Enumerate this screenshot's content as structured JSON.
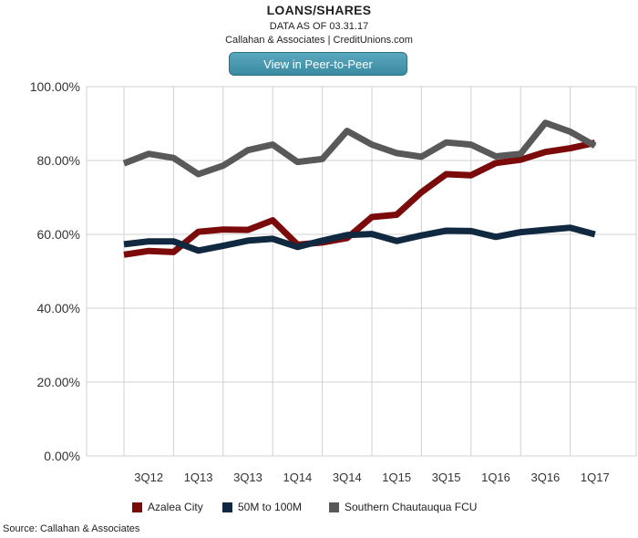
{
  "header": {
    "title": "LOANS/SHARES",
    "subtitle": "DATA AS OF 03.31.17",
    "credit": "Callahan & Associates | CreditUnions.com"
  },
  "button": {
    "label": "View in Peer-to-Peer"
  },
  "source": "Source: Callahan & Associates",
  "colors": {
    "azalea": "#7b0a0a",
    "peer": "#102840",
    "southern": "#595959",
    "grid": "#d0d0d0"
  },
  "chart_data": {
    "type": "line",
    "title": "LOANS/SHARES",
    "ylim": [
      0,
      100
    ],
    "y_ticks": [
      "0.00%",
      "20.00%",
      "40.00%",
      "60.00%",
      "80.00%",
      "100.00%"
    ],
    "x_tick_labels": [
      "3Q12",
      "1Q13",
      "3Q13",
      "1Q14",
      "3Q14",
      "1Q15",
      "3Q15",
      "1Q16",
      "3Q16",
      "1Q17"
    ],
    "x": [
      "2Q12",
      "3Q12",
      "4Q12",
      "1Q13",
      "2Q13",
      "3Q13",
      "4Q13",
      "1Q14",
      "2Q14",
      "3Q14",
      "4Q14",
      "1Q15",
      "2Q15",
      "3Q15",
      "4Q15",
      "1Q16",
      "2Q16",
      "3Q16",
      "4Q16",
      "1Q17"
    ],
    "grid": true,
    "legend_position": "bottom",
    "series": [
      {
        "name": "Azalea City",
        "color": "#7b0a0a",
        "values": [
          54.5,
          55.5,
          55.2,
          60.7,
          61.3,
          61.2,
          63.8,
          57.2,
          57.8,
          59.0,
          64.7,
          65.3,
          71.4,
          76.3,
          76.0,
          79.3,
          80.2,
          82.3,
          83.3,
          84.8
        ]
      },
      {
        "name": "50M to 100M",
        "color": "#102840",
        "values": [
          57.3,
          58.1,
          58.1,
          55.6,
          56.9,
          58.3,
          58.8,
          56.6,
          58.3,
          59.8,
          60.1,
          58.2,
          59.7,
          61.0,
          60.9,
          59.3,
          60.6,
          61.2,
          61.8,
          60.0
        ]
      },
      {
        "name": "Southern Chautauqua FCU",
        "color": "#595959",
        "values": [
          79.2,
          81.8,
          80.7,
          76.3,
          78.6,
          82.8,
          84.3,
          79.6,
          80.4,
          88.0,
          84.3,
          82.0,
          81.0,
          84.9,
          84.3,
          81.1,
          81.8,
          90.2,
          87.8,
          84.0
        ]
      }
    ]
  }
}
